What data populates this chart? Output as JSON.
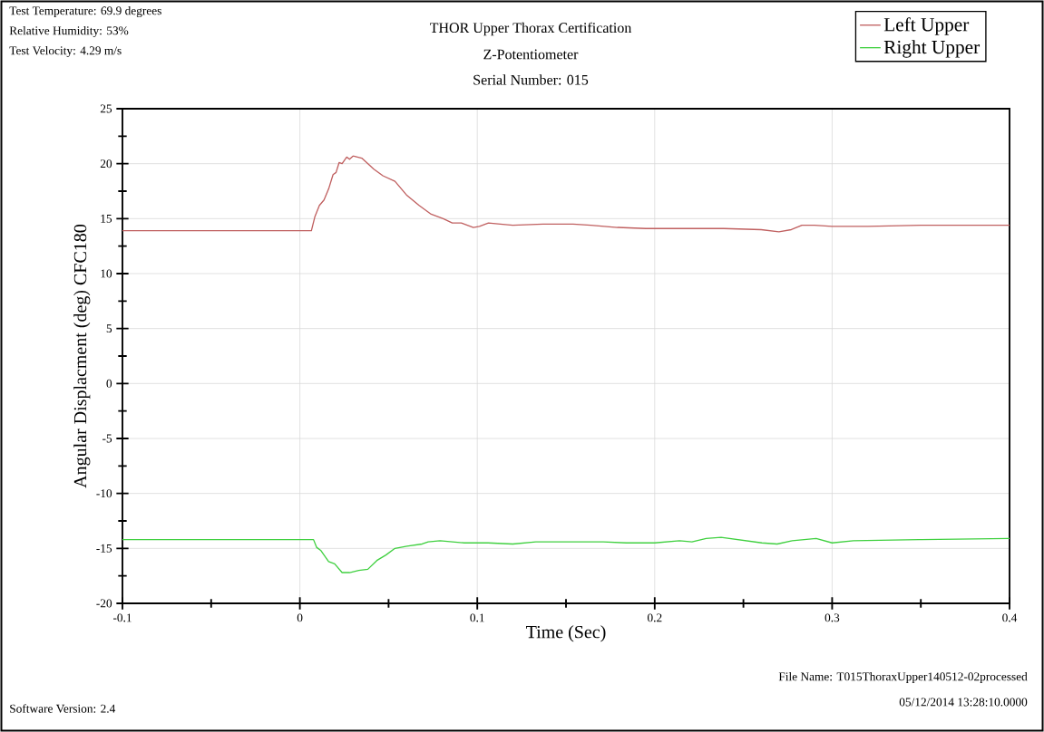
{
  "chart_data": {
    "type": "line",
    "title": "THOR Upper Thorax Certification",
    "subtitle": "Z-Potentiometer",
    "xlabel": "Time (Sec)",
    "ylabel": "Angular Displacment (deg) CFC180",
    "annotations": [
      "Test Temperature: 69.9 degrees",
      "Relative Humidity: 53%",
      "Test Velocity: 4.29 m/s",
      "Serial Number: 015",
      "Software Version: 2.4",
      "File Name: T015ThoraxUpper140512-02processed",
      "05/12/2014 13:28:10.0000"
    ],
    "xlim": [
      -0.1,
      0.4
    ],
    "ylim": [
      -20,
      25
    ],
    "xticks": [
      -0.1,
      {
        "value": -0.05,
        "label": null
      },
      0,
      {
        "value": 0.05,
        "label": null
      },
      0.1,
      {
        "value": 0.15,
        "label": null
      },
      0.2,
      {
        "value": 0.25,
        "label": null
      },
      0.3,
      {
        "value": 0.35,
        "label": null
      },
      0.4
    ],
    "yticks": [
      -20,
      {
        "value": -17.5,
        "label": null
      },
      -15,
      {
        "value": -12.5,
        "label": null
      },
      -10,
      {
        "value": -7.5,
        "label": null
      },
      -5,
      {
        "value": -2.5,
        "label": null
      },
      0,
      {
        "value": 2.5,
        "label": null
      },
      5,
      {
        "value": 7.5,
        "label": null
      },
      10,
      {
        "value": 12.5,
        "label": null
      },
      15,
      {
        "value": 17.5,
        "label": null
      },
      20,
      {
        "value": 22.5,
        "label": null
      },
      25
    ],
    "grid": true,
    "legend": "top right",
    "marker": "none",
    "line_style": "solid",
    "series": [
      {
        "name": "Left Upper",
        "color": "#c06060",
        "x": [
          -0.1,
          0.0065,
          0.0085,
          0.011,
          0.0136,
          0.0162,
          0.0187,
          0.0204,
          0.0221,
          0.0238,
          0.0264,
          0.028,
          0.03,
          0.0349,
          0.0417,
          0.0468,
          0.0536,
          0.0604,
          0.0672,
          0.074,
          0.0808,
          0.0859,
          0.091,
          0.0978,
          0.1012,
          0.1063,
          0.113,
          0.12,
          0.137,
          0.154,
          0.164,
          0.179,
          0.195,
          0.239,
          0.26,
          0.27,
          0.277,
          0.283,
          0.29,
          0.3,
          0.32,
          0.35,
          0.4
        ],
        "values": [
          13.9,
          13.9,
          15.2,
          16.2,
          16.7,
          17.7,
          19.0,
          19.2,
          20.1,
          20.0,
          20.6,
          20.4,
          20.7,
          20.5,
          19.5,
          18.9,
          18.4,
          17.1,
          16.2,
          15.4,
          15.0,
          14.6,
          14.6,
          14.2,
          14.3,
          14.6,
          14.5,
          14.4,
          14.5,
          14.5,
          14.4,
          14.2,
          14.1,
          14.1,
          14.0,
          13.8,
          14.0,
          14.4,
          14.4,
          14.3,
          14.3,
          14.4,
          14.4
        ]
      },
      {
        "name": "Right Upper",
        "color": "#40d040",
        "x": [
          -0.1,
          0.0077,
          0.0094,
          0.0119,
          0.0162,
          0.0196,
          0.0238,
          0.028,
          0.0332,
          0.0383,
          0.0434,
          0.0485,
          0.0536,
          0.0604,
          0.0689,
          0.0723,
          0.079,
          0.086,
          0.0927,
          0.1,
          0.106,
          0.12,
          0.133,
          0.154,
          0.171,
          0.184,
          0.2,
          0.214,
          0.221,
          0.229,
          0.2374,
          0.2604,
          0.269,
          0.2775,
          0.291,
          0.3,
          0.312,
          0.349,
          0.4
        ],
        "values": [
          -14.2,
          -14.2,
          -14.9,
          -15.2,
          -16.2,
          -16.4,
          -17.2,
          -17.2,
          -17.0,
          -16.9,
          -16.1,
          -15.6,
          -15.0,
          -14.8,
          -14.6,
          -14.4,
          -14.3,
          -14.4,
          -14.5,
          -14.5,
          -14.5,
          -14.6,
          -14.4,
          -14.4,
          -14.4,
          -14.5,
          -14.5,
          -14.3,
          -14.4,
          -14.1,
          -14.0,
          -14.5,
          -14.6,
          -14.3,
          -14.1,
          -14.5,
          -14.3,
          -14.2,
          -14.1
        ]
      }
    ]
  }
}
